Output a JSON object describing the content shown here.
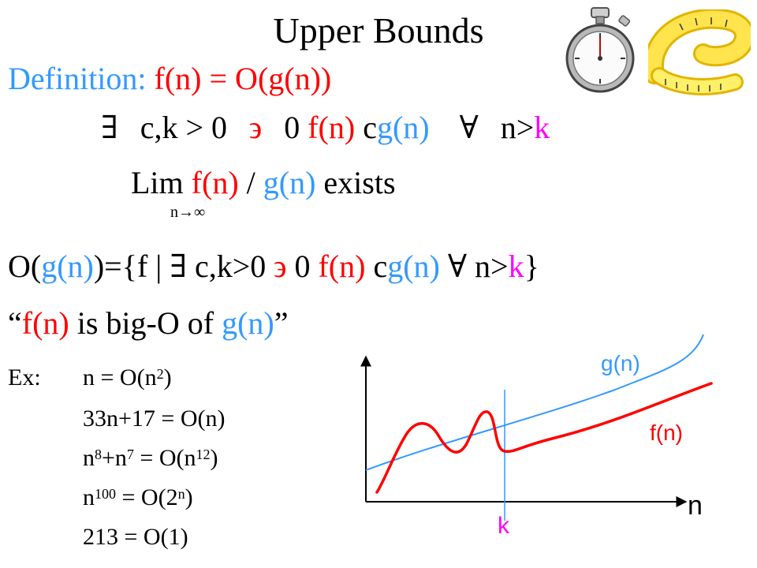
{
  "slide": {
    "title": "Upper Bounds",
    "definition": {
      "label": "Definition:",
      "expr": "f(n) = O(g(n))",
      "iff1": "",
      "exists": "∃",
      "ck": "c,k > 0",
      "st": "϶",
      "zero": "0",
      "le1": "",
      "fn": "f(n)",
      "le2": "",
      "c": "c",
      "mul": "",
      "gn": "g(n)",
      "forall": "∀",
      "n_gt": "n>",
      "k": "k",
      "iff2": "",
      "lim": "Lim",
      "lim_fn": "f(n)",
      "slash": "/",
      "lim_gn": "g(n)",
      "exists_word": "exists",
      "lim_sub": "n→∞"
    },
    "set_def": {
      "o_open": "O(",
      "g": "g(n)",
      "o_close": ")={f |",
      "exists": "∃",
      "ck": "c,k>0",
      "st": "϶",
      "zero": "0",
      "le1": "",
      "fn": "f(n)",
      "le2": "",
      "c": "c",
      "mul": "",
      "gn": "g(n)",
      "forall": "∀",
      "n_gt": "n>",
      "k": "k",
      "close": "}"
    },
    "quote": {
      "open": "“",
      "fn": "f(n)",
      "mid": " is big-O of ",
      "gn": "g(n)",
      "close": "”"
    },
    "examples": {
      "label": "Ex:",
      "e1": {
        "base": "n = O(n",
        "sup": "2",
        "end": ")"
      },
      "e2": {
        "text": "33n+17 = O(n)"
      },
      "e3": {
        "b1": "n",
        "s1": "8",
        "b2": "+n",
        "s2": "7",
        "b3": " = O(n",
        "s3": "12",
        "end": ")"
      },
      "e4": {
        "b1": "n",
        "s1": "100",
        "b2": " = O(2",
        "s2": "n",
        "end": ")"
      },
      "e5": {
        "text": "213 = O(1)"
      }
    }
  },
  "chart_data": {
    "type": "line",
    "series": [
      {
        "name": "g(n)",
        "color": "#3399ff"
      },
      {
        "name": "f(n)",
        "color": "#ff0000"
      }
    ],
    "xlabel": "n",
    "marker_label": "k",
    "marker_color": "#ff00ff",
    "axis_color": "#000000",
    "marker_line_color": "#3399ff"
  },
  "icons": [
    "stopwatch-icon",
    "measuring-tape-icon"
  ]
}
